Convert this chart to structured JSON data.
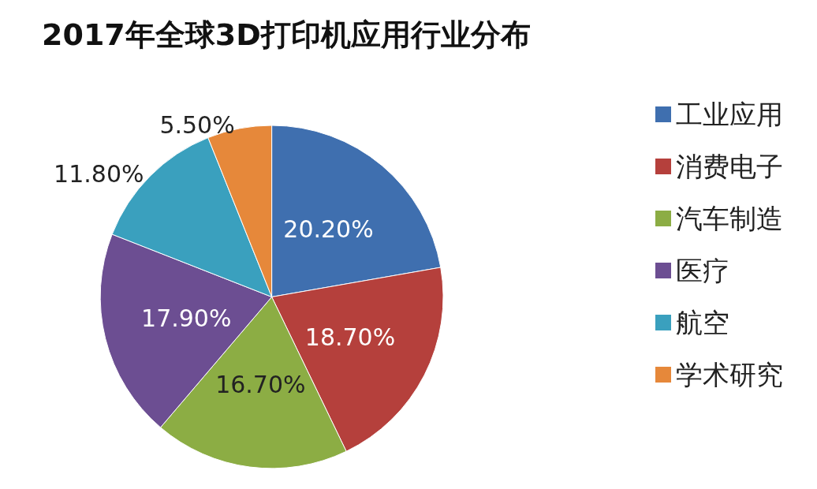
{
  "chart_data": {
    "type": "pie",
    "title": "2017年全球3D打印机应用行业分布",
    "categories": [
      "工业应用",
      "消费电子",
      "汽车制造",
      "医疗",
      "航空",
      "学术研究"
    ],
    "values": [
      20.2,
      18.7,
      16.7,
      17.9,
      11.8,
      5.5
    ],
    "value_labels": [
      "20.20%",
      "18.70%",
      "16.70%",
      "17.90%",
      "11.80%",
      "5.50%"
    ],
    "colors": [
      "#3f6faf",
      "#b5403c",
      "#8cad44",
      "#6c4e92",
      "#3aa0be",
      "#e6883a"
    ],
    "legend": "right"
  }
}
